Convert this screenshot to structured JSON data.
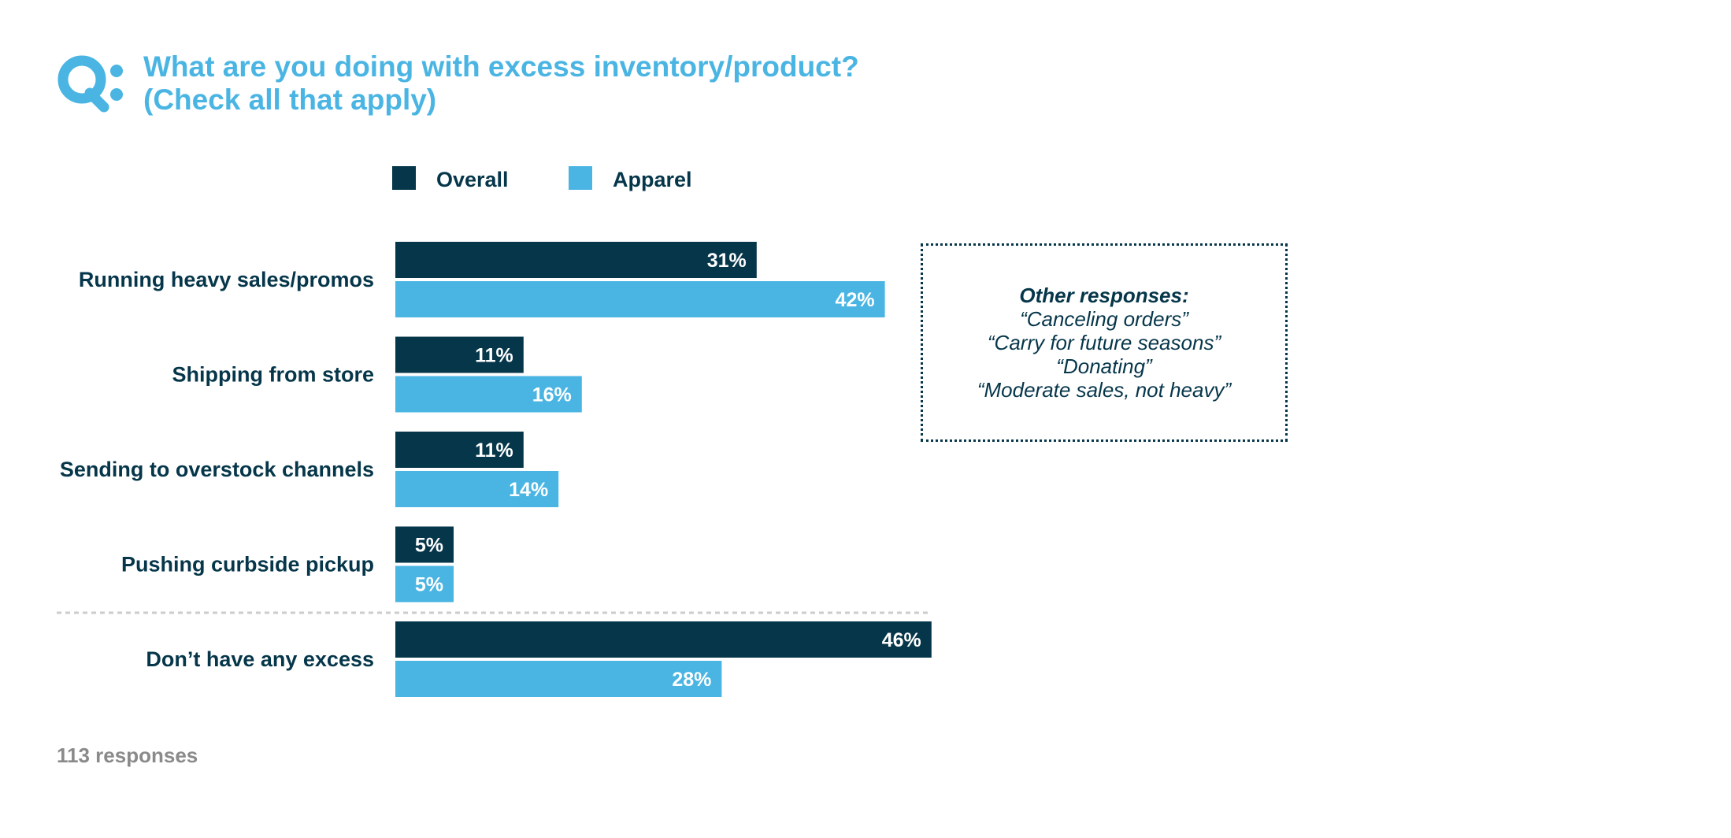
{
  "title": {
    "line1": "What are you doing with excess inventory/product?",
    "line2": "(Check all that apply)",
    "logo_text": "Q:"
  },
  "colors": {
    "overall": "#06364a",
    "apparel": "#4ab5e3",
    "divider": "#cccccc"
  },
  "chart_data": {
    "type": "bar",
    "orientation": "horizontal",
    "categories": [
      "Running heavy sales/promos",
      "Shipping from store",
      "Sending to overstock channels",
      "Pushing curbside pickup",
      "Don’t have any excess"
    ],
    "series": [
      {
        "name": "Overall",
        "values": [
          31,
          11,
          11,
          5,
          46
        ],
        "labels": [
          "31%",
          "11%",
          "11%",
          "5%",
          "46%"
        ]
      },
      {
        "name": "Apparel",
        "values": [
          42,
          16,
          14,
          5,
          28
        ],
        "labels": [
          "42%",
          "16%",
          "14%",
          "5%",
          "28%"
        ]
      }
    ],
    "xlim": [
      0,
      46
    ],
    "legend_position": "top",
    "grid": false,
    "divider_before_last_category": true
  },
  "other_responses": {
    "title": "Other responses:",
    "items": [
      "“Canceling orders”",
      "“Carry for future seasons”",
      "“Donating”",
      "“Moderate sales, not heavy”"
    ]
  },
  "footnote": "113 responses"
}
